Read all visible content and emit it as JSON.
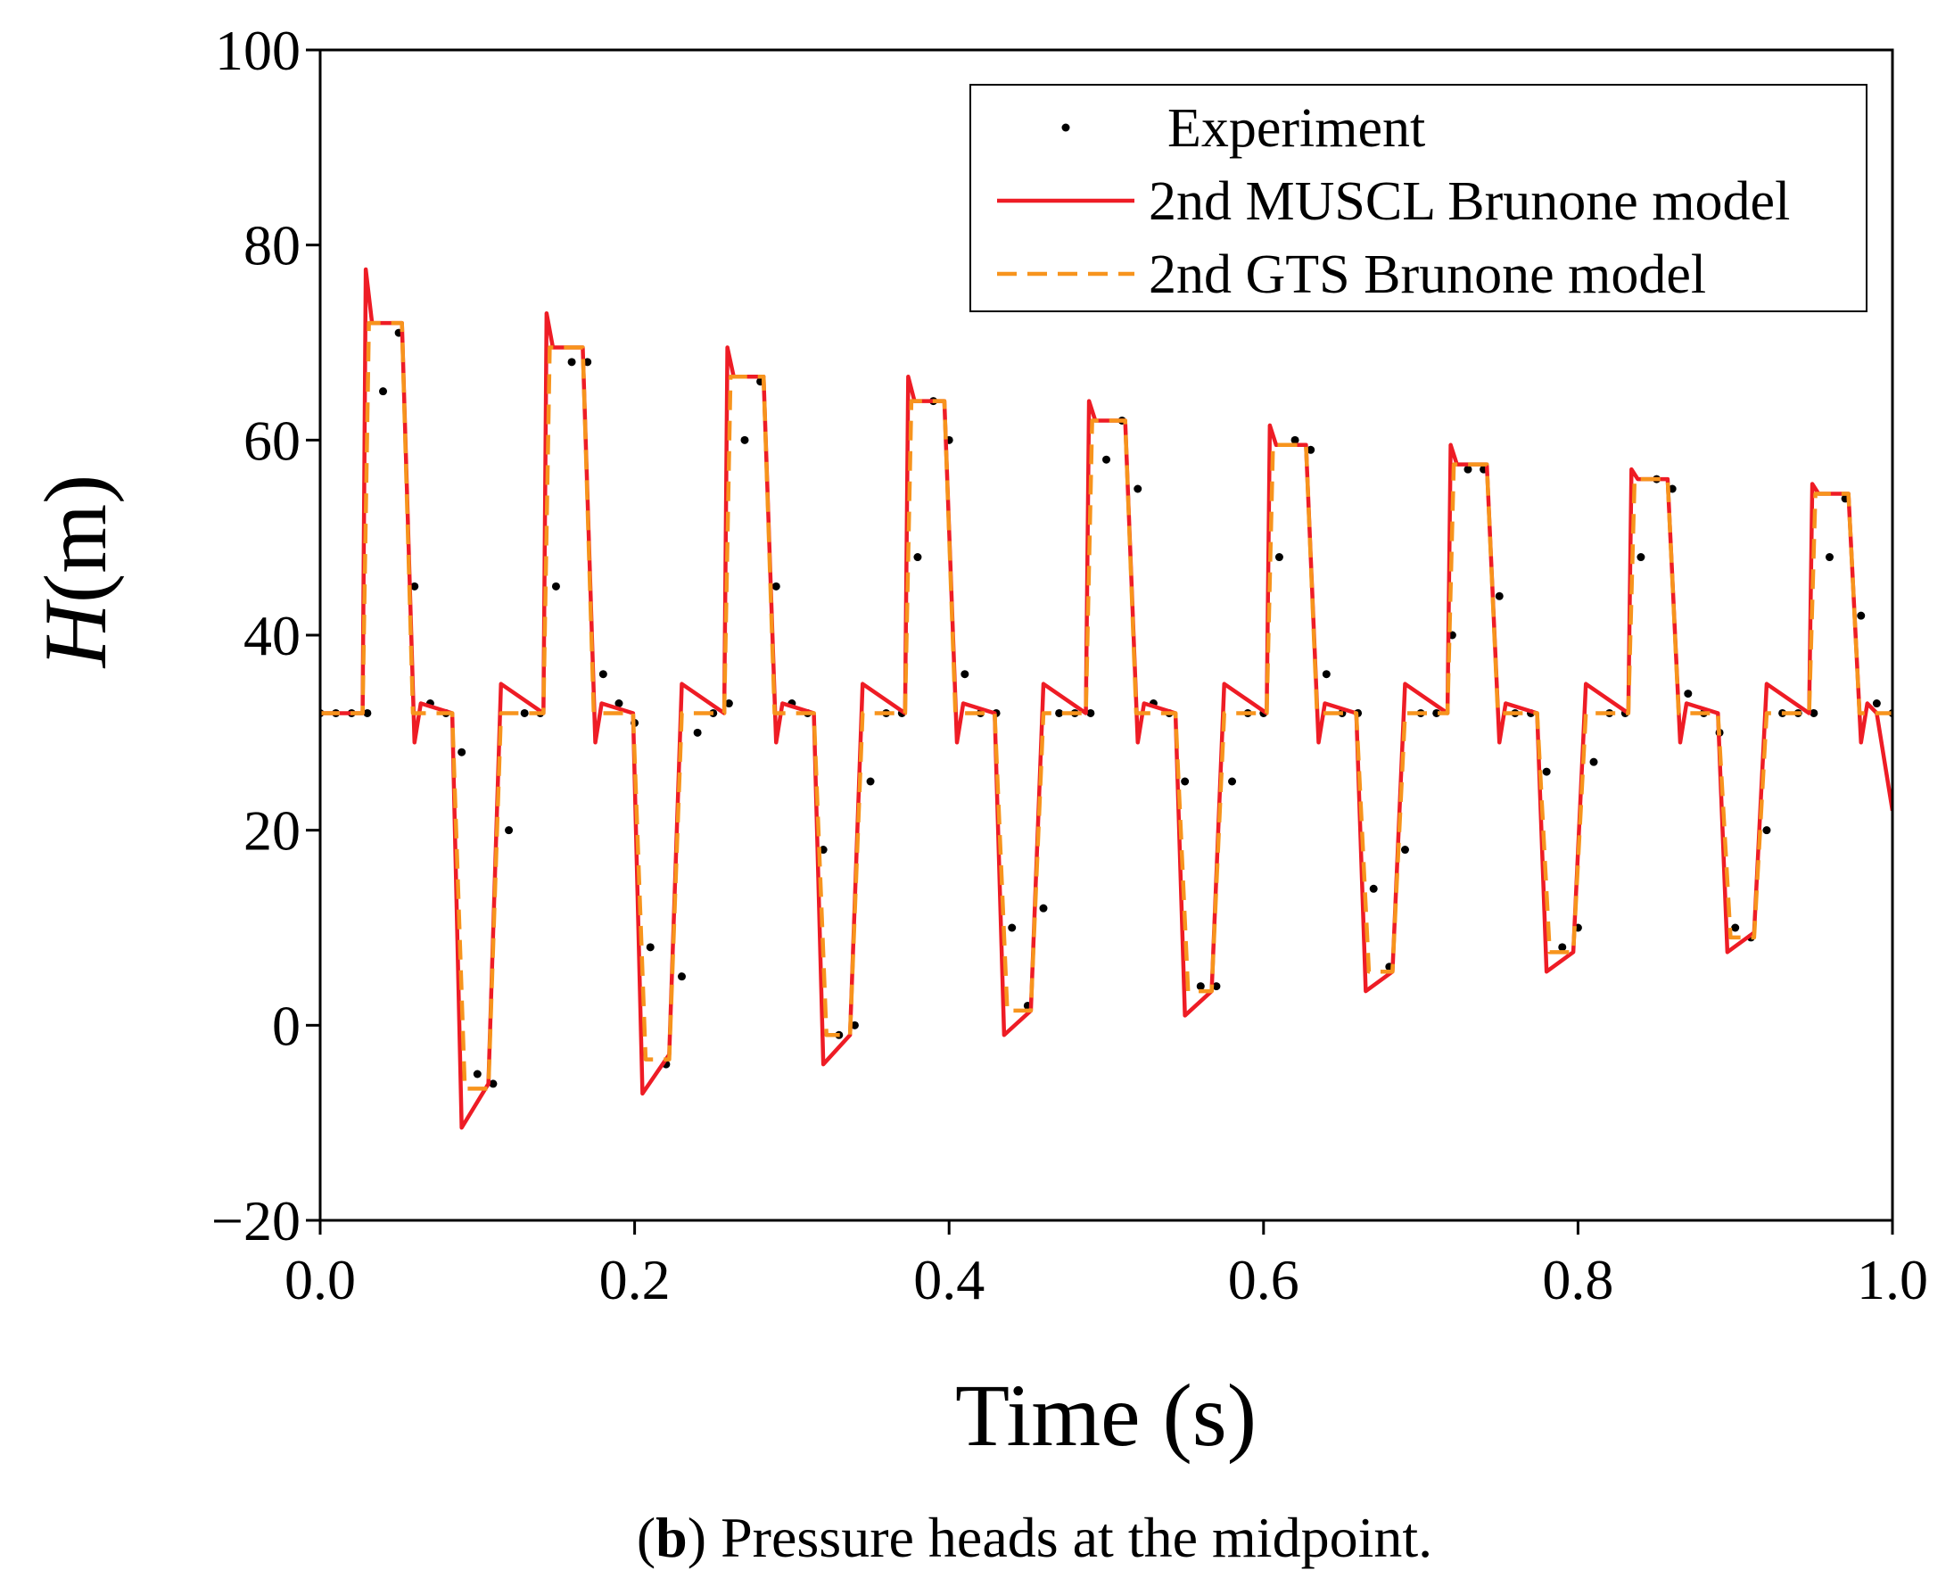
{
  "chart_data": {
    "type": "line",
    "y_label": [
      "H",
      "(m)"
    ],
    "x_label": "Time (s)",
    "caption": [
      "(",
      "b",
      ") Pressure heads at the midpoint."
    ],
    "xlim": [
      0,
      1
    ],
    "ylim": [
      -20,
      100
    ],
    "xticks": [
      {
        "value": 0,
        "label": "0.0"
      },
      0.2,
      0.4,
      0.6,
      0.8,
      {
        "value": 1,
        "label": "1.0"
      }
    ],
    "yticks": [
      {
        "value": -20,
        "label": "−20"
      },
      0,
      20,
      40,
      60,
      80,
      100
    ],
    "legend": "top-right",
    "grid": false,
    "series": [
      {
        "name": "Experiment",
        "color": "#000000",
        "style": "dots",
        "x": [
          0,
          0.01,
          0.02,
          0.03,
          0.04,
          0.05,
          0.06,
          0.07,
          0.08,
          0.09,
          0.1,
          0.11,
          0.12,
          0.13,
          0.14,
          0.15,
          0.16,
          0.17,
          0.18,
          0.19,
          0.2,
          0.21,
          0.22,
          0.23,
          0.24,
          0.25,
          0.26,
          0.27,
          0.28,
          0.29,
          0.3,
          0.31,
          0.32,
          0.33,
          0.34,
          0.35,
          0.36,
          0.37,
          0.38,
          0.39,
          0.4,
          0.41,
          0.42,
          0.43,
          0.44,
          0.45,
          0.46,
          0.47,
          0.48,
          0.49,
          0.5,
          0.51,
          0.52,
          0.53,
          0.54,
          0.55,
          0.56,
          0.57,
          0.58,
          0.59,
          0.6,
          0.61,
          0.62,
          0.63,
          0.64,
          0.65,
          0.66,
          0.67,
          0.68,
          0.69,
          0.7,
          0.71,
          0.72,
          0.73,
          0.74,
          0.75,
          0.76,
          0.77,
          0.78,
          0.79,
          0.8,
          0.81,
          0.82,
          0.83,
          0.84,
          0.85,
          0.86,
          0.87,
          0.88,
          0.89,
          0.9,
          0.91,
          0.92,
          0.93,
          0.94,
          0.95,
          0.96,
          0.97,
          0.98,
          0.99,
          1
        ],
        "values": [
          32,
          32,
          32,
          32,
          65,
          71,
          45,
          33,
          32,
          28,
          -5,
          -6,
          20,
          32,
          32,
          45,
          68,
          68,
          36,
          33,
          31,
          8,
          -4,
          5,
          30,
          32,
          33,
          60,
          66,
          45,
          33,
          32,
          18,
          -1,
          0,
          25,
          32,
          32,
          48,
          64,
          60,
          36,
          32,
          32,
          10,
          2,
          12,
          32,
          32,
          32,
          58,
          62,
          55,
          33,
          32,
          25,
          4,
          4,
          25,
          32,
          32,
          48,
          60,
          59,
          36,
          32,
          32,
          14,
          6,
          18,
          32,
          32,
          40,
          57,
          57,
          44,
          32,
          32,
          26,
          8,
          10,
          27,
          32,
          32,
          48,
          56,
          55,
          34,
          32,
          30,
          10,
          9,
          20,
          32,
          32,
          32,
          48,
          54,
          42,
          33,
          32
        ]
      },
      {
        "name": "2nd MUSCL Brunone model",
        "color": "#ee1c25",
        "style": "solid",
        "x": [
          0,
          0.027,
          0.029,
          0.033,
          0.052,
          0.06,
          0.064,
          0.084,
          0.09,
          0.107,
          0.115,
          0.142,
          0.144,
          0.148,
          0.167,
          0.175,
          0.179,
          0.199,
          0.205,
          0.222,
          0.23,
          0.257,
          0.259,
          0.263,
          0.282,
          0.29,
          0.294,
          0.314,
          0.32,
          0.337,
          0.345,
          0.372,
          0.374,
          0.378,
          0.397,
          0.405,
          0.409,
          0.429,
          0.435,
          0.452,
          0.46,
          0.487,
          0.489,
          0.493,
          0.512,
          0.52,
          0.524,
          0.544,
          0.55,
          0.567,
          0.575,
          0.602,
          0.604,
          0.608,
          0.627,
          0.635,
          0.639,
          0.659,
          0.665,
          0.682,
          0.69,
          0.717,
          0.719,
          0.723,
          0.742,
          0.75,
          0.754,
          0.774,
          0.78,
          0.797,
          0.805,
          0.832,
          0.834,
          0.838,
          0.857,
          0.865,
          0.869,
          0.889,
          0.895,
          0.912,
          0.92,
          0.947,
          0.949,
          0.953,
          0.972,
          0.98,
          0.984,
          0.99,
          1
        ],
        "values": [
          32,
          32,
          77.5,
          72,
          72,
          29,
          33,
          32,
          -10.5,
          -6,
          35,
          32,
          73,
          69.5,
          69.5,
          29,
          33,
          32,
          -7,
          -3,
          35,
          32,
          69.5,
          66.5,
          66.5,
          29,
          33,
          32,
          -4,
          -1,
          35,
          32,
          66.5,
          64,
          64,
          29,
          33,
          32,
          -1,
          1.5,
          35,
          32,
          64,
          62,
          62,
          29,
          33,
          32,
          1,
          3.5,
          35,
          32,
          61.5,
          59.5,
          59.5,
          29,
          33,
          32,
          3.5,
          5.5,
          35,
          32,
          59.5,
          57.5,
          57.5,
          29,
          33,
          32,
          5.5,
          7.5,
          35,
          32,
          57,
          56,
          56,
          29,
          33,
          32,
          7.5,
          9.5,
          35,
          32,
          55.5,
          54.5,
          54.5,
          29,
          33,
          32,
          22
        ]
      },
      {
        "name": "2nd GTS Brunone model",
        "color": "#f7941d",
        "style": "dashed",
        "x": [
          0,
          0.027,
          0.031,
          0.052,
          0.059,
          0.084,
          0.092,
          0.107,
          0.115,
          0.142,
          0.146,
          0.167,
          0.174,
          0.199,
          0.207,
          0.222,
          0.23,
          0.257,
          0.261,
          0.282,
          0.289,
          0.314,
          0.322,
          0.337,
          0.345,
          0.372,
          0.376,
          0.397,
          0.404,
          0.429,
          0.437,
          0.452,
          0.46,
          0.487,
          0.491,
          0.512,
          0.519,
          0.544,
          0.552,
          0.567,
          0.575,
          0.602,
          0.606,
          0.627,
          0.634,
          0.659,
          0.667,
          0.682,
          0.69,
          0.717,
          0.721,
          0.742,
          0.749,
          0.774,
          0.782,
          0.797,
          0.805,
          0.832,
          0.836,
          0.857,
          0.864,
          0.889,
          0.897,
          0.912,
          0.92,
          0.947,
          0.951,
          0.972,
          0.979,
          1
        ],
        "values": [
          32,
          32,
          72,
          72,
          32,
          32,
          -6.5,
          -6.5,
          32,
          32,
          69.5,
          69.5,
          32,
          32,
          -3.5,
          -3.5,
          32,
          32,
          66.5,
          66.5,
          32,
          32,
          -1,
          -1,
          32,
          32,
          64,
          64,
          32,
          32,
          1.5,
          1.5,
          32,
          32,
          62,
          62,
          32,
          32,
          3.5,
          3.5,
          32,
          32,
          59.5,
          59.5,
          32,
          32,
          5.5,
          5.5,
          32,
          32,
          57.5,
          57.5,
          32,
          32,
          7.5,
          7.5,
          32,
          32,
          56,
          56,
          32,
          32,
          9,
          9,
          32,
          32,
          54.5,
          54.5,
          32,
          32
        ]
      }
    ]
  }
}
